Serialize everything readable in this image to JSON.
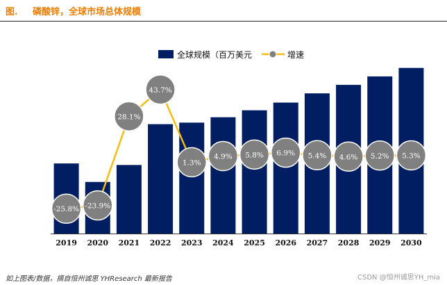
{
  "figure": {
    "label": "图.",
    "title": "磷酸锌，全球市场总体规模",
    "source": "如上图表/数据，摘自恒州诚思 YHResearch 最新报告",
    "watermark": "CSDN @恒州诚思YH_mia"
  },
  "colors": {
    "bar": "#001e61",
    "line": "#f6bd0f",
    "marker": "#808080",
    "marker_stroke": "#ffffff",
    "accent": "#ef7d00",
    "axis": "#333333"
  },
  "chart_data": {
    "type": "bar",
    "categories": [
      "2019",
      "2020",
      "2021",
      "2022",
      "2023",
      "2024",
      "2025",
      "2026",
      "2027",
      "2028",
      "2029",
      "2030"
    ],
    "series": [
      {
        "name": "全球规模（百万美元",
        "kind": "bar",
        "values": [
          91,
          67,
          89,
          142,
          144,
          151,
          160,
          170,
          182,
          193,
          204,
          215
        ]
      },
      {
        "name": "增速",
        "kind": "line",
        "values": [
          -25.8,
          -23.9,
          28.1,
          43.7,
          1.3,
          4.9,
          5.8,
          6.9,
          5.4,
          4.6,
          5.2,
          5.3
        ],
        "labels": [
          "-25.8%",
          "-23.9%",
          "28.1%",
          "43.7%",
          "1.3%",
          "4.9%",
          "5.8%",
          "6.9%",
          "5.4%",
          "4.6%",
          "5.2%",
          "5.3%"
        ]
      }
    ],
    "bar_ylim": [
      0,
      240
    ],
    "line_ylim": [
      -33,
      55
    ],
    "legend_position": "top",
    "grid": false
  }
}
